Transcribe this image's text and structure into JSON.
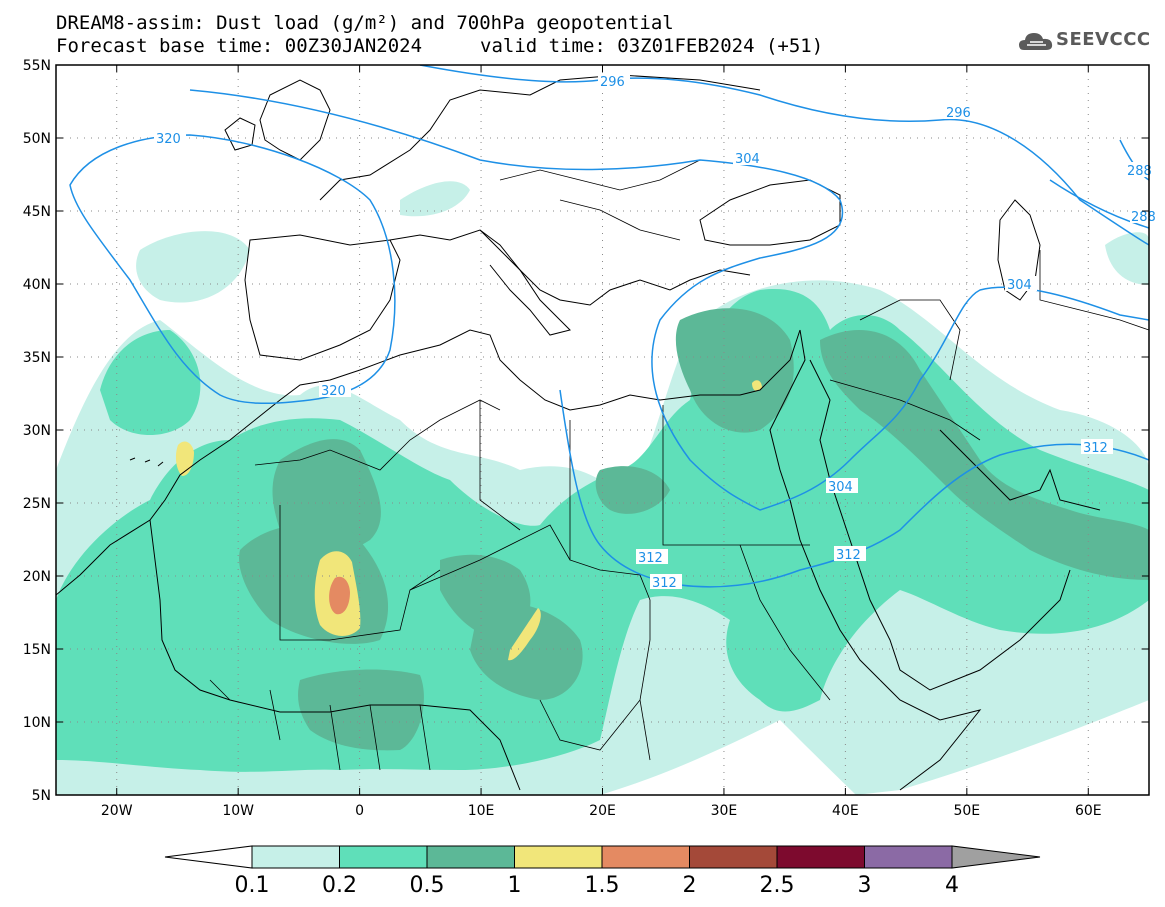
{
  "title": {
    "line1": "DREAM8-assim: Dust load (g/m²) and 700hPa geopotential",
    "line2_base": "Forecast base time: 00Z30JAN2024",
    "line2_valid": "valid time: 03Z01FEB2024 (+51)"
  },
  "logo": {
    "text": "SEEVCCC",
    "icon": "cloud-icon"
  },
  "map": {
    "lon_range": [
      -25,
      65
    ],
    "lat_range": [
      5,
      55
    ],
    "lat_labels": [
      "55N",
      "50N",
      "45N",
      "40N",
      "35N",
      "30N",
      "25N",
      "20N",
      "15N",
      "10N",
      "5N"
    ],
    "lon_labels": [
      "20W",
      "10W",
      "0",
      "10E",
      "20E",
      "30E",
      "40E",
      "50E",
      "60E"
    ],
    "grid": "dotted",
    "contour_labels": [
      "296",
      "296",
      "304",
      "304",
      "304",
      "312",
      "312",
      "312",
      "312",
      "320",
      "320",
      "288",
      "288"
    ]
  },
  "colorbar": {
    "labels": [
      "0.1",
      "0.2",
      "0.5",
      "1",
      "1.5",
      "2",
      "2.5",
      "3",
      "4"
    ],
    "colors": [
      "#ffffff",
      "#c6f0e8",
      "#5fdfb9",
      "#5cb897",
      "#f1e67a",
      "#e48a62",
      "#a44939",
      "#7d0a2e",
      "#8b6aa5",
      "#a0a0a0"
    ]
  },
  "colors": {
    "contour": "#1e90e6",
    "coast": "#000000"
  }
}
